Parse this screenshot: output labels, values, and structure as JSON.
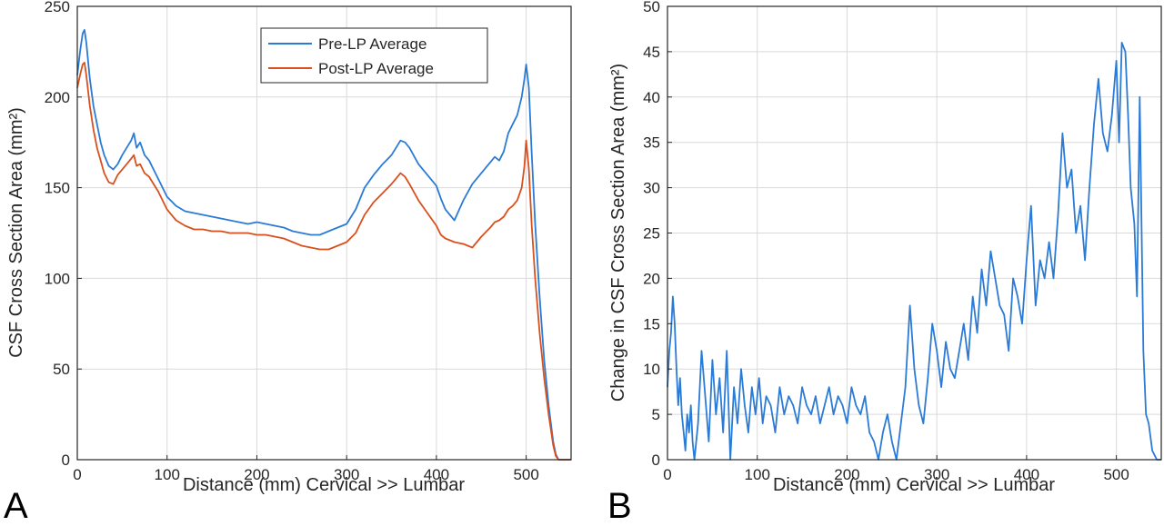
{
  "chart_data": [
    {
      "type": "line",
      "panel": "A",
      "xlabel": "Distance (mm) Cervical >> Lumbar",
      "ylabel": "CSF Cross Section Area (mm²)",
      "xlim": [
        0,
        550
      ],
      "ylim": [
        0,
        250
      ],
      "xticks": [
        0,
        100,
        200,
        300,
        400,
        500
      ],
      "yticks": [
        0,
        50,
        100,
        150,
        200,
        250
      ],
      "grid": true,
      "legend_position": "top-right",
      "series": [
        {
          "name": "Pre-LP Average",
          "color": "#2b7bd6",
          "x": [
            0,
            3,
            6,
            8,
            10,
            14,
            18,
            22,
            26,
            30,
            35,
            40,
            45,
            50,
            55,
            60,
            63,
            66,
            70,
            75,
            80,
            85,
            90,
            95,
            100,
            110,
            120,
            130,
            140,
            150,
            160,
            170,
            180,
            190,
            200,
            210,
            220,
            230,
            240,
            250,
            260,
            270,
            280,
            290,
            300,
            310,
            320,
            330,
            340,
            350,
            355,
            360,
            365,
            370,
            380,
            390,
            400,
            405,
            410,
            420,
            430,
            440,
            450,
            460,
            465,
            470,
            475,
            480,
            485,
            490,
            495,
            498,
            500,
            503,
            506,
            510,
            515,
            520,
            525,
            530,
            533,
            536,
            540,
            545,
            550
          ],
          "y": [
            212,
            225,
            235,
            237,
            230,
            210,
            195,
            185,
            175,
            168,
            162,
            160,
            163,
            168,
            172,
            176,
            180,
            172,
            175,
            168,
            165,
            160,
            155,
            150,
            145,
            140,
            137,
            136,
            135,
            134,
            133,
            132,
            131,
            130,
            131,
            130,
            129,
            128,
            126,
            125,
            124,
            124,
            126,
            128,
            130,
            138,
            150,
            157,
            163,
            168,
            172,
            176,
            175,
            172,
            163,
            157,
            151,
            144,
            138,
            132,
            143,
            152,
            158,
            164,
            167,
            165,
            170,
            180,
            185,
            190,
            200,
            210,
            218,
            205,
            170,
            130,
            90,
            55,
            30,
            10,
            3,
            0,
            0,
            0,
            0
          ]
        },
        {
          "name": "Post-LP Average",
          "color": "#d9501e",
          "x": [
            0,
            3,
            6,
            8,
            10,
            14,
            18,
            22,
            26,
            30,
            35,
            40,
            45,
            50,
            55,
            60,
            63,
            66,
            70,
            75,
            80,
            85,
            90,
            95,
            100,
            110,
            120,
            130,
            140,
            150,
            160,
            170,
            180,
            190,
            200,
            210,
            220,
            230,
            240,
            250,
            260,
            270,
            280,
            290,
            300,
            310,
            320,
            330,
            340,
            350,
            355,
            360,
            365,
            370,
            380,
            390,
            400,
            405,
            410,
            420,
            430,
            440,
            450,
            460,
            465,
            470,
            475,
            480,
            485,
            490,
            495,
            498,
            500,
            503,
            506,
            510,
            515,
            520,
            525,
            530,
            533,
            536,
            540,
            545,
            550
          ],
          "y": [
            205,
            212,
            218,
            219,
            212,
            195,
            182,
            172,
            165,
            158,
            153,
            152,
            157,
            160,
            163,
            166,
            168,
            162,
            163,
            158,
            156,
            152,
            148,
            143,
            138,
            132,
            129,
            127,
            127,
            126,
            126,
            125,
            125,
            125,
            124,
            124,
            123,
            122,
            120,
            118,
            117,
            116,
            116,
            118,
            120,
            125,
            135,
            142,
            147,
            152,
            155,
            158,
            156,
            152,
            143,
            136,
            129,
            124,
            122,
            120,
            119,
            117,
            123,
            128,
            131,
            132,
            134,
            138,
            140,
            143,
            150,
            162,
            176,
            160,
            130,
            100,
            70,
            45,
            25,
            8,
            2,
            0,
            0,
            0,
            0
          ]
        }
      ]
    },
    {
      "type": "line",
      "panel": "B",
      "xlabel": "Distance (mm) Cervical >> Lumbar",
      "ylabel": "Change in CSF Cross Section Area (mm²)",
      "xlim": [
        0,
        550
      ],
      "ylim": [
        0,
        50
      ],
      "xticks": [
        0,
        100,
        200,
        300,
        400,
        500
      ],
      "yticks": [
        0,
        5,
        10,
        15,
        20,
        25,
        30,
        35,
        40,
        45,
        50
      ],
      "grid": true,
      "series": [
        {
          "color": "#2b7bd6",
          "x": [
            0,
            2,
            4,
            6,
            8,
            10,
            12,
            14,
            16,
            18,
            20,
            22,
            24,
            26,
            28,
            30,
            34,
            38,
            42,
            46,
            50,
            54,
            58,
            62,
            66,
            70,
            74,
            78,
            82,
            86,
            90,
            94,
            98,
            102,
            106,
            110,
            115,
            120,
            125,
            130,
            135,
            140,
            145,
            150,
            155,
            160,
            165,
            170,
            175,
            180,
            185,
            190,
            195,
            200,
            205,
            210,
            215,
            220,
            225,
            230,
            235,
            240,
            245,
            250,
            255,
            260,
            265,
            270,
            275,
            280,
            285,
            290,
            295,
            300,
            305,
            310,
            315,
            320,
            325,
            330,
            335,
            340,
            345,
            350,
            355,
            360,
            365,
            370,
            375,
            380,
            385,
            390,
            395,
            400,
            405,
            410,
            415,
            420,
            425,
            430,
            435,
            440,
            445,
            450,
            455,
            460,
            465,
            470,
            475,
            480,
            485,
            490,
            495,
            500,
            503,
            506,
            510,
            513,
            516,
            520,
            523,
            526,
            530,
            533,
            536,
            540,
            545,
            550
          ],
          "y": [
            8,
            12,
            14,
            18,
            15,
            10,
            6,
            9,
            5,
            3,
            1,
            5,
            3,
            6,
            2,
            0,
            4,
            12,
            7,
            2,
            11,
            5,
            9,
            3,
            12,
            0,
            8,
            4,
            10,
            6,
            3,
            8,
            5,
            9,
            4,
            7,
            6,
            3,
            8,
            5,
            7,
            6,
            4,
            8,
            6,
            5,
            7,
            4,
            6,
            8,
            5,
            7,
            6,
            4,
            8,
            6,
            5,
            7,
            3,
            2,
            0,
            3,
            5,
            2,
            0,
            4,
            8,
            17,
            10,
            6,
            4,
            9,
            15,
            12,
            8,
            13,
            10,
            9,
            12,
            15,
            11,
            18,
            14,
            21,
            17,
            23,
            20,
            17,
            16,
            12,
            20,
            18,
            15,
            22,
            28,
            17,
            22,
            20,
            24,
            20,
            27,
            36,
            30,
            32,
            25,
            28,
            22,
            30,
            37,
            42,
            36,
            34,
            38,
            44,
            35,
            46,
            45,
            38,
            30,
            26,
            18,
            40,
            12,
            5,
            4,
            1,
            0,
            0
          ]
        }
      ]
    }
  ]
}
